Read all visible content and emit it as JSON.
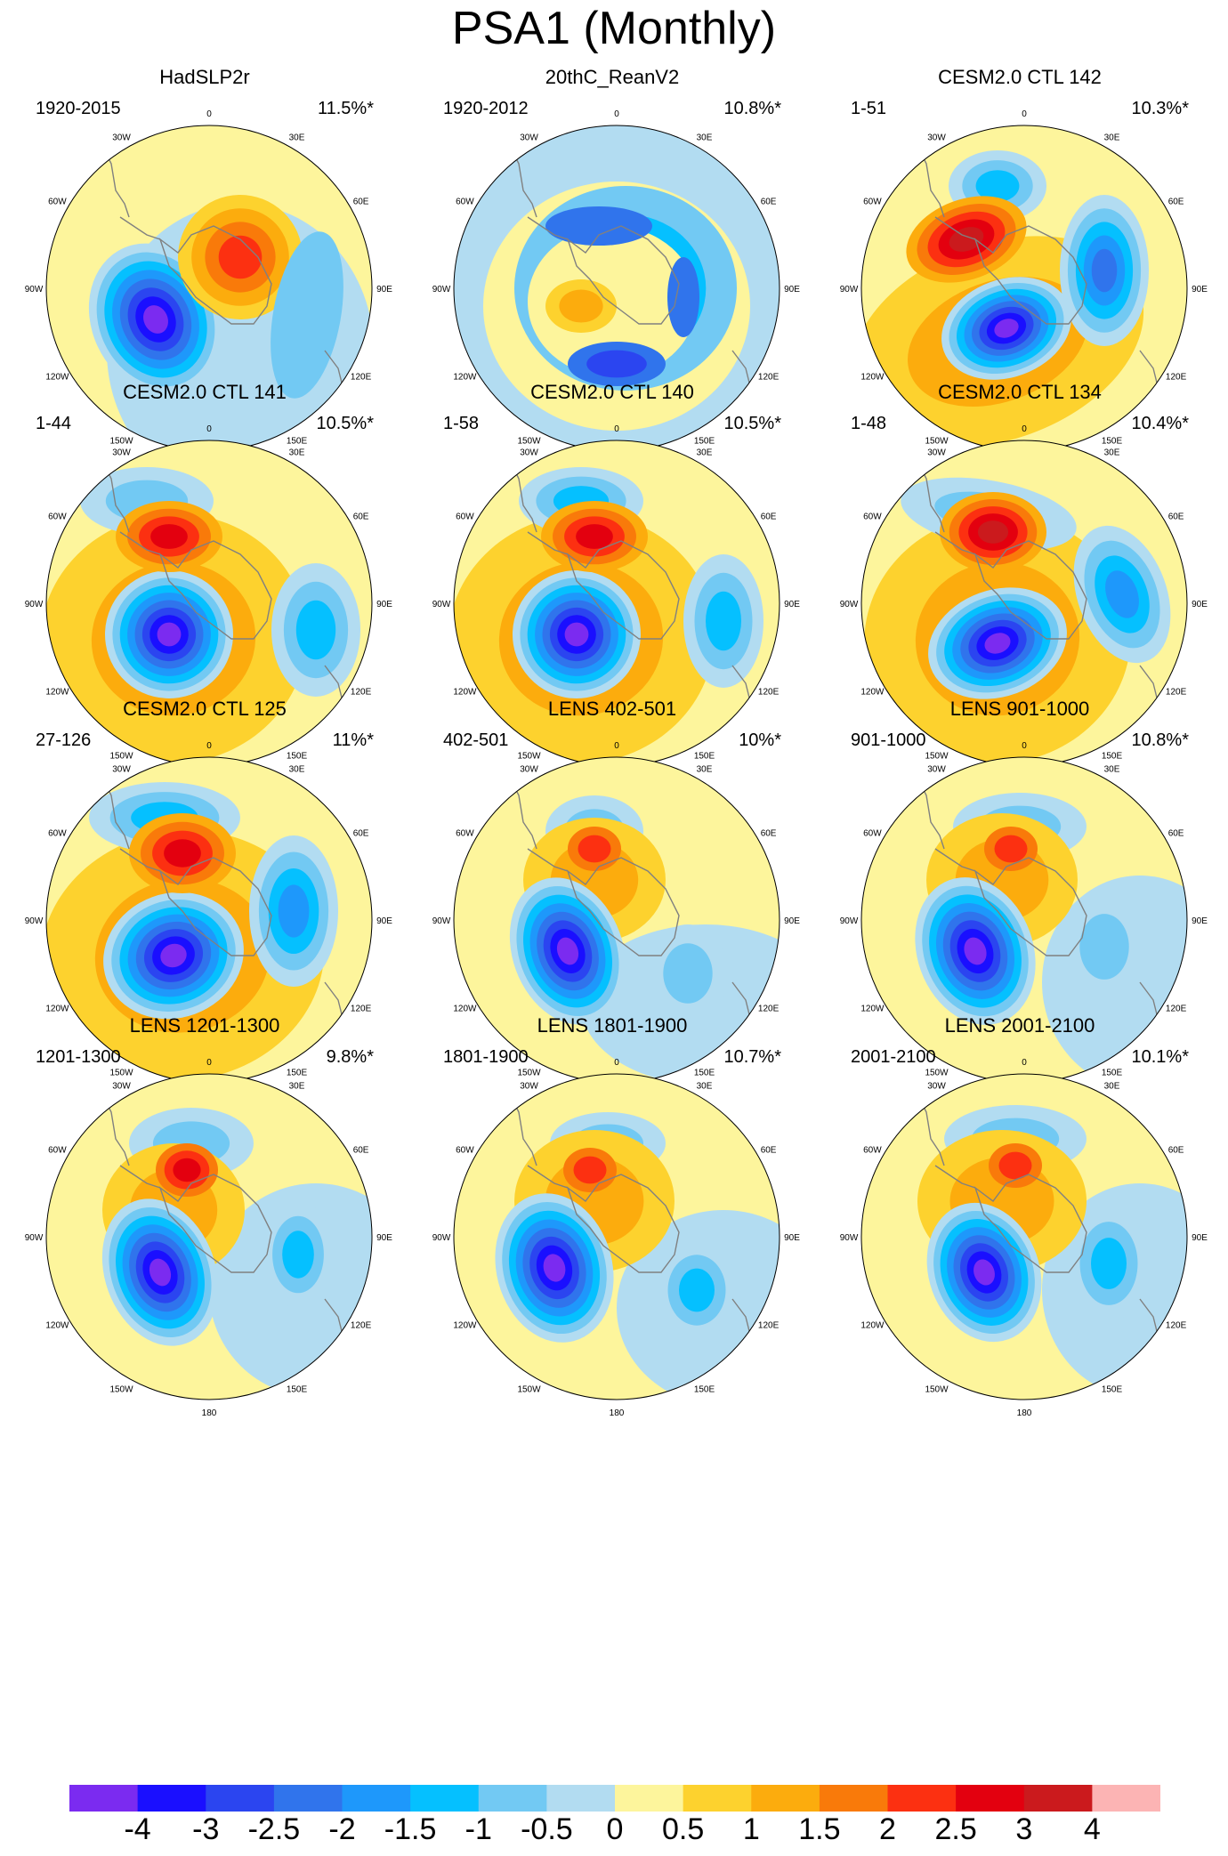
{
  "title": "PSA1 (Monthly)",
  "longitude_labels": [
    "0",
    "30E",
    "60E",
    "90E",
    "120E",
    "150E",
    "180",
    "150W",
    "120W",
    "90W",
    "60W",
    "30W"
  ],
  "panels": [
    {
      "title": "HadSLP2r",
      "period": "1920-2015",
      "variance": "11.5%*"
    },
    {
      "title": "20thC_ReanV2",
      "period": "1920-2012",
      "variance": "10.8%*"
    },
    {
      "title": "CESM2.0 CTL 142",
      "period": "1-51",
      "variance": "10.3%*"
    },
    {
      "title": "CESM2.0 CTL 141",
      "period": "1-44",
      "variance": "10.5%*"
    },
    {
      "title": "CESM2.0 CTL 140",
      "period": "1-58",
      "variance": "10.5%*"
    },
    {
      "title": "CESM2.0 CTL 134",
      "period": "1-48",
      "variance": "10.4%*"
    },
    {
      "title": "CESM2.0 CTL 125",
      "period": "27-126",
      "variance": "11%*"
    },
    {
      "title": "LENS 402-501",
      "period": "402-501",
      "variance": "10%*"
    },
    {
      "title": "LENS 901-1000",
      "period": "901-1000",
      "variance": "10.8%*"
    },
    {
      "title": "LENS 1201-1300",
      "period": "1201-1300",
      "variance": "9.8%*"
    },
    {
      "title": "LENS 1801-1900",
      "period": "1801-1900",
      "variance": "10.7%*"
    },
    {
      "title": "LENS 2001-2100",
      "period": "2001-2100",
      "variance": "10.1%*"
    }
  ],
  "colorbar": {
    "colors": [
      "#7b2bf0",
      "#1a0fff",
      "#2b45f0",
      "#3074ec",
      "#1e98fb",
      "#05c0ff",
      "#72c9f3",
      "#b2dcf1",
      "#fdf59c",
      "#fdd22e",
      "#fcac0d",
      "#f97a0a",
      "#fc3011",
      "#e3000f",
      "#cb1a1d",
      "#fcb4b4"
    ],
    "labels": [
      "-4",
      "-3",
      "-2.5",
      "-2",
      "-1.5",
      "-1",
      "-0.5",
      "0",
      "0.5",
      "1",
      "1.5",
      "2",
      "2.5",
      "3",
      "4"
    ]
  },
  "colors": {
    "coastline": "#808080",
    "map_border": "#000000"
  }
}
